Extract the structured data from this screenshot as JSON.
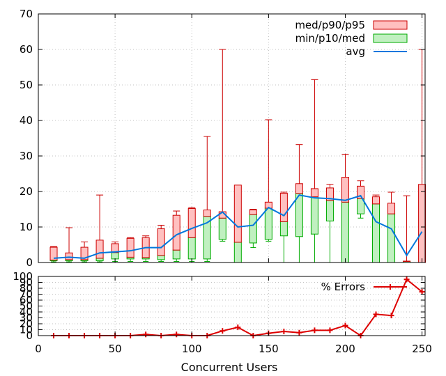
{
  "chart_data": [
    {
      "type": "box-candlestick",
      "xlim": [
        0,
        252
      ],
      "ylim": [
        0,
        70
      ],
      "xticks": [
        0,
        50,
        100,
        150,
        200,
        250
      ],
      "yticks": [
        0,
        10,
        20,
        30,
        40,
        50,
        60,
        70
      ],
      "grid": true,
      "legend_position": "top-right",
      "legend": [
        {
          "label": "med/p90/p95",
          "color": "#ffc0c0",
          "border": "#cc0000"
        },
        {
          "label": "min/p10/med",
          "color": "#c0f0c0",
          "border": "#00aa00"
        },
        {
          "label": "avg",
          "color": "#0077dd"
        }
      ],
      "x": [
        10,
        20,
        30,
        40,
        50,
        60,
        70,
        80,
        90,
        100,
        110,
        120,
        130,
        140,
        150,
        160,
        170,
        180,
        190,
        200,
        210,
        220,
        230,
        240,
        250
      ],
      "min": [
        0.2,
        0.2,
        0.2,
        0.2,
        0.3,
        0.3,
        0.3,
        0.3,
        0.3,
        0.3,
        0.3,
        6,
        0,
        4.2,
        6,
        0,
        0,
        0,
        0,
        0,
        12.5,
        0,
        0,
        0,
        0
      ],
      "p10": [
        0.5,
        0.5,
        0.5,
        0.5,
        1,
        1,
        1,
        0.8,
        1,
        1,
        1,
        6.5,
        0,
        5.5,
        6.5,
        7.5,
        7.3,
        8,
        11.7,
        0,
        13.7,
        0,
        0,
        0,
        0
      ],
      "med": [
        0.7,
        0.8,
        0.8,
        1.2,
        2.8,
        1.5,
        1.4,
        2,
        3.5,
        7,
        13,
        12.5,
        5.7,
        13.5,
        15.3,
        11.5,
        19.5,
        18.5,
        17.5,
        17,
        18,
        16.5,
        13.7,
        0.3,
        0
      ],
      "p90": [
        4.3,
        2.7,
        4.3,
        6.3,
        5.3,
        6.8,
        7,
        9.5,
        13.3,
        15.2,
        14.8,
        14.3,
        21.8,
        14.8,
        17,
        19.5,
        22.2,
        20.8,
        21,
        24,
        21.5,
        18.5,
        16.7,
        0.4,
        22
      ],
      "p95": [
        4.5,
        9.8,
        5.8,
        19,
        5.8,
        7,
        7.5,
        10.5,
        14.5,
        15.5,
        35.5,
        60,
        21.8,
        15,
        40.2,
        19.8,
        33.2,
        51.5,
        22,
        30.5,
        23,
        19,
        19.8,
        18.8,
        60
      ],
      "avg": [
        1.2,
        1.5,
        1.2,
        2.7,
        3,
        3.3,
        4.2,
        4.2,
        7.8,
        9.6,
        11.2,
        14.2,
        10,
        10.5,
        15.5,
        13.2,
        19,
        18.2,
        18,
        17.5,
        18.8,
        11.5,
        9.5,
        2,
        8.7
      ]
    },
    {
      "type": "line",
      "xlim": [
        0,
        252
      ],
      "ylim": [
        0,
        100
      ],
      "xticks": [
        0,
        50,
        100,
        150,
        200,
        250
      ],
      "yticks": [
        0,
        10,
        20,
        30,
        40,
        50,
        60,
        70,
        80,
        90,
        100
      ],
      "grid": true,
      "xlabel": "Concurrent Users",
      "legend_position": "top-right",
      "series": [
        {
          "name": "% Errors",
          "color": "#dd0000",
          "x": [
            10,
            20,
            30,
            40,
            50,
            60,
            70,
            80,
            90,
            100,
            110,
            120,
            130,
            140,
            150,
            160,
            170,
            180,
            190,
            200,
            210,
            220,
            230,
            240,
            250
          ],
          "values": [
            0,
            0,
            0,
            0,
            0,
            0,
            2,
            0,
            2,
            0,
            0,
            8,
            14,
            0,
            4,
            7,
            5,
            9,
            9,
            17,
            0,
            36,
            34,
            95,
            74
          ]
        }
      ]
    }
  ]
}
